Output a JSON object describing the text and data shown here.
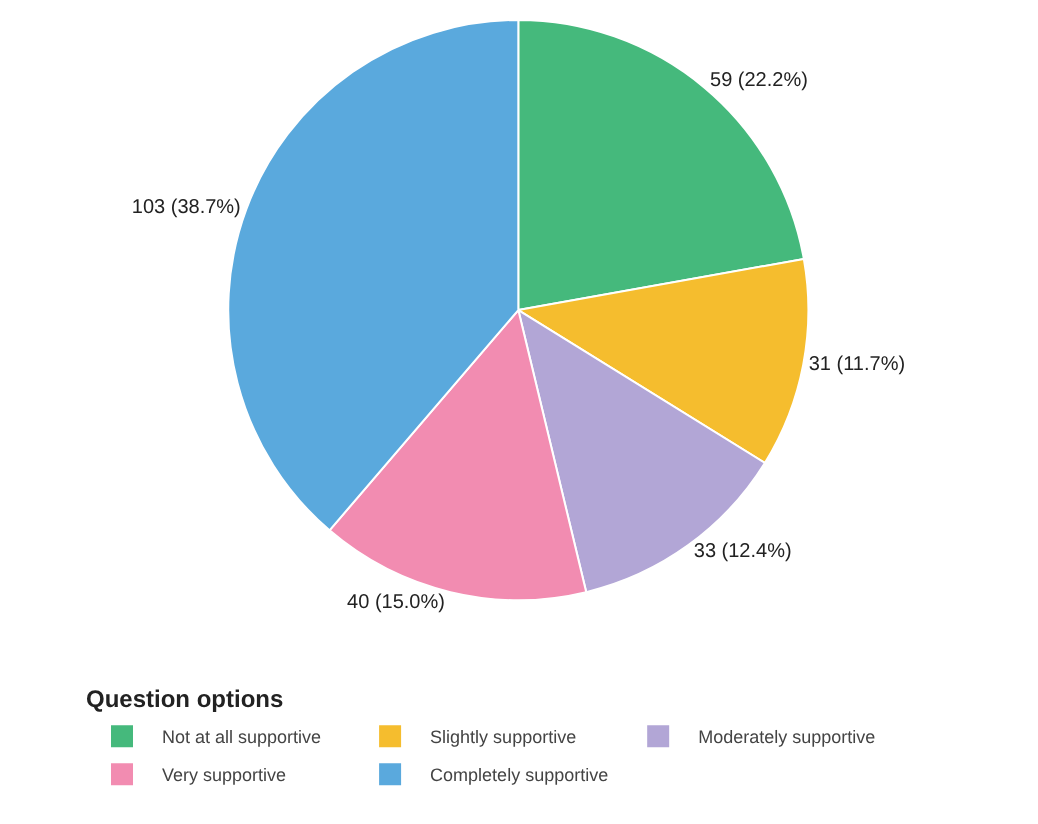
{
  "chart_data": {
    "type": "pie",
    "legend_title": "Question options",
    "legend": "bottom",
    "categories": [
      "Not at all supportive",
      "Slightly supportive",
      "Moderately supportive",
      "Very supportive",
      "Completely supportive"
    ],
    "values": [
      59,
      31,
      33,
      40,
      103
    ],
    "value_labels": [
      "59 (22.2%)",
      "31 (11.7%)",
      "33 (12.4%)",
      "40 (15.0%)",
      "103 (38.7%)"
    ],
    "colors": [
      "#45b97c",
      "#f5bd2e",
      "#b2a6d6",
      "#f28cb1",
      "#5aa9dd"
    ]
  }
}
